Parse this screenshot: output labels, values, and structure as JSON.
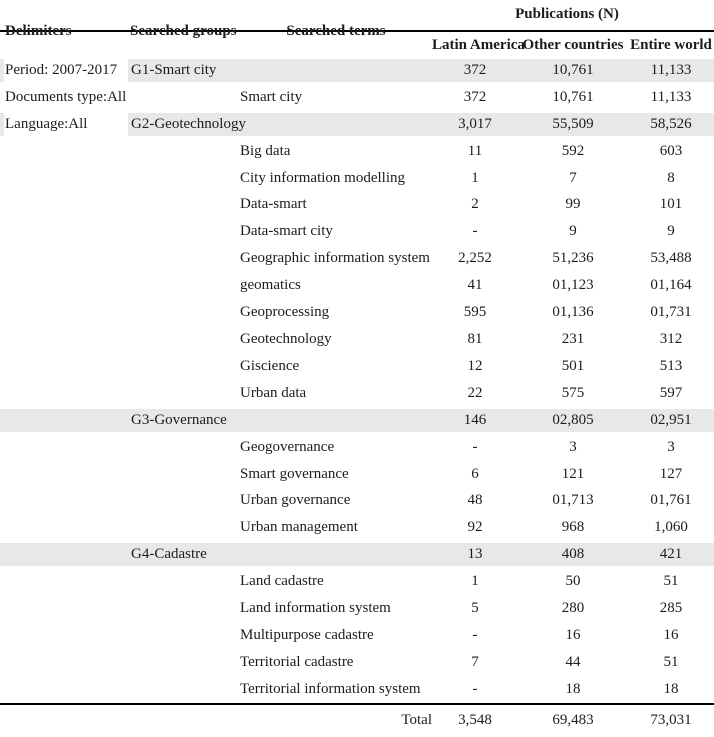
{
  "table": {
    "header": {
      "publications": "Publications (N)",
      "delimiters": "Delimiters",
      "groups": "Searched groups",
      "terms": "Searched terms",
      "col_latam": "Latin America",
      "col_other": "Other countries",
      "col_world": "Entire world"
    },
    "rows": [
      {
        "type": "group",
        "delimiter": "Period: 2007-2017",
        "label": "G1-Smart city",
        "latam": "372",
        "other": "10,761",
        "world": "11,133"
      },
      {
        "type": "term",
        "delimiter": "Documents type:All",
        "label": "Smart city",
        "latam": "372",
        "other": "10,761",
        "world": "11,133"
      },
      {
        "type": "group",
        "delimiter": "Language:All",
        "label": "G2-Geotechnology",
        "latam": "3,017",
        "other": "55,509",
        "world": "58,526"
      },
      {
        "type": "term",
        "label": "Big data",
        "latam": "11",
        "other": "592",
        "world": "603"
      },
      {
        "type": "term",
        "label": "City information modelling",
        "latam": "1",
        "other": "7",
        "world": "8"
      },
      {
        "type": "term",
        "label": "Data-smart",
        "latam": "2",
        "other": "99",
        "world": "101"
      },
      {
        "type": "term",
        "label": "Data-smart city",
        "latam": "-",
        "other": "9",
        "world": "9"
      },
      {
        "type": "term",
        "label": "Geographic information system",
        "latam": "2,252",
        "other": "51,236",
        "world": "53,488"
      },
      {
        "type": "term",
        "label": "geomatics",
        "latam": "41",
        "other": "01,123",
        "world": "01,164"
      },
      {
        "type": "term",
        "label": "Geoprocessing",
        "latam": "595",
        "other": "01,136",
        "world": "01,731"
      },
      {
        "type": "term",
        "label": "Geotechnology",
        "latam": "81",
        "other": "231",
        "world": "312"
      },
      {
        "type": "term",
        "label": "Giscience",
        "latam": "12",
        "other": "501",
        "world": "513"
      },
      {
        "type": "term",
        "label": "Urban data",
        "latam": "22",
        "other": "575",
        "world": "597"
      },
      {
        "type": "group",
        "label": "G3-Governance",
        "latam": "146",
        "other": "02,805",
        "world": "02,951"
      },
      {
        "type": "term",
        "label": "Geogovernance",
        "latam": "-",
        "other": "3",
        "world": "3"
      },
      {
        "type": "term",
        "label": "Smart governance",
        "latam": "6",
        "other": "121",
        "world": "127"
      },
      {
        "type": "term",
        "label": "Urban governance",
        "latam": "48",
        "other": "01,713",
        "world": "01,761"
      },
      {
        "type": "term",
        "label": "Urban management",
        "latam": "92",
        "other": "968",
        "world": "1,060"
      },
      {
        "type": "group",
        "label": "G4-Cadastre",
        "latam": "13",
        "other": "408",
        "world": "421"
      },
      {
        "type": "term",
        "label": "Land cadastre",
        "latam": "1",
        "other": "50",
        "world": "51"
      },
      {
        "type": "term",
        "label": "Land information system",
        "latam": "5",
        "other": "280",
        "world": "285"
      },
      {
        "type": "term",
        "label": "Multipurpose cadastre",
        "latam": "-",
        "other": "16",
        "world": "16"
      },
      {
        "type": "term",
        "label": "Territorial cadastre",
        "latam": "7",
        "other": "44",
        "world": "51"
      },
      {
        "type": "term",
        "label": "Territorial information system",
        "latam": "-",
        "other": "18",
        "world": "18"
      }
    ],
    "total": {
      "label": "Total",
      "latam": "3,548",
      "other": "69,483",
      "world": "73,031"
    },
    "colors": {
      "row_shade": "#e8e8e8",
      "rule": "#000000",
      "text": "#1c1c1c"
    }
  }
}
